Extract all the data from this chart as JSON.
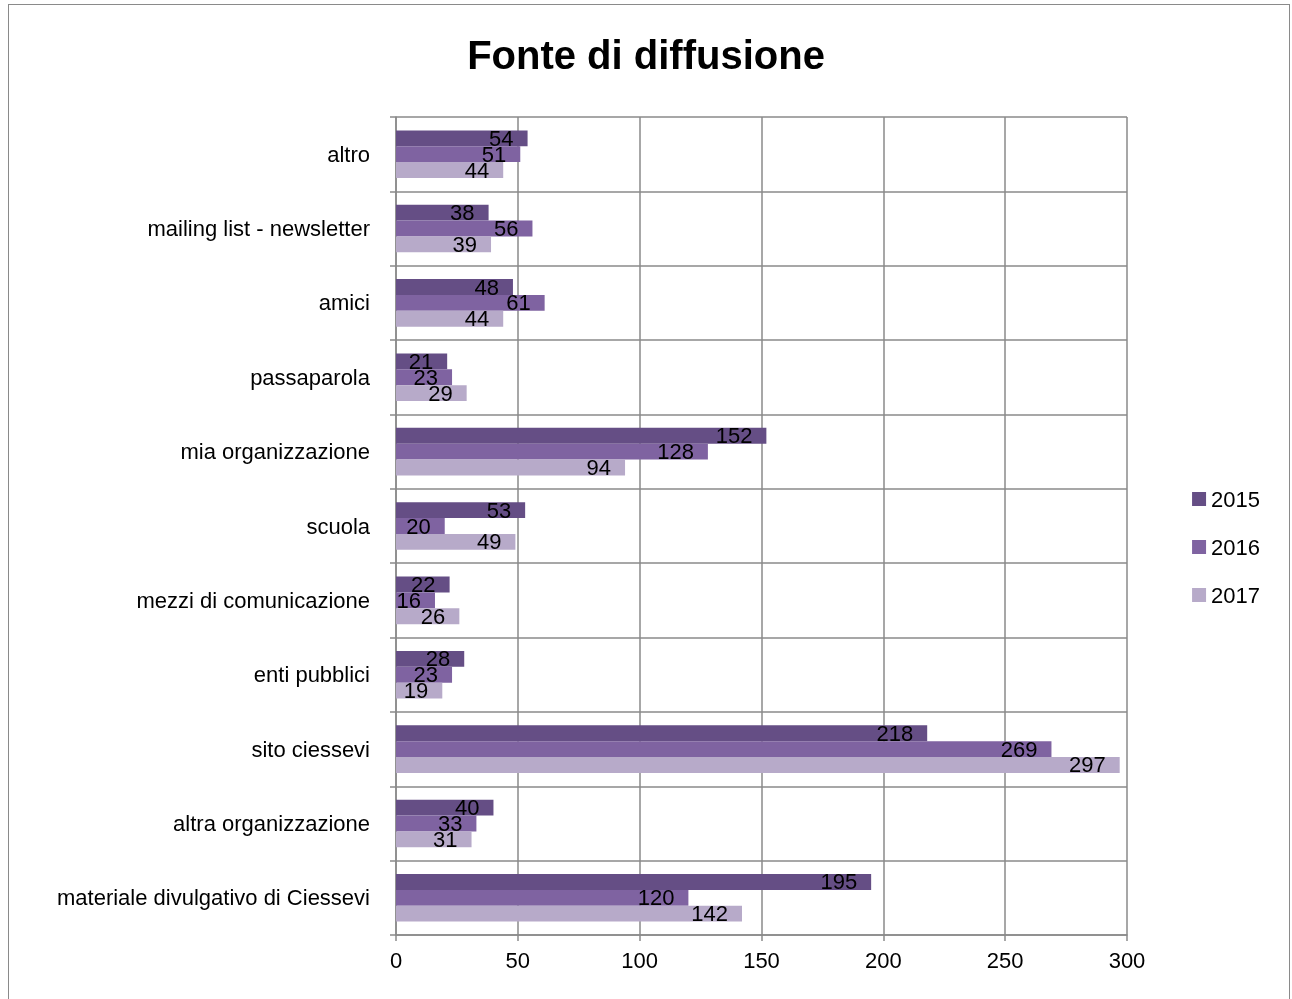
{
  "chart_data": {
    "type": "bar",
    "orientation": "horizontal",
    "title": "Fonte di diffusione",
    "categories": [
      "altro",
      "mailing list - newsletter",
      "amici",
      "passaparola",
      "mia organizzazione",
      "scuola",
      "mezzi di comunicazione",
      "enti pubblici",
      "sito ciessevi",
      "altra organizzazione",
      "materiale divulgativo di Ciessevi"
    ],
    "series": [
      {
        "name": "2015",
        "color": "#654e85",
        "values": [
          54,
          38,
          48,
          21,
          152,
          53,
          22,
          28,
          218,
          40,
          195
        ]
      },
      {
        "name": "2016",
        "color": "#7f63a1",
        "values": [
          51,
          56,
          61,
          23,
          128,
          20,
          16,
          23,
          269,
          33,
          120
        ]
      },
      {
        "name": "2017",
        "color": "#b7aac9",
        "values": [
          44,
          39,
          44,
          29,
          94,
          49,
          26,
          19,
          297,
          31,
          142
        ]
      }
    ],
    "xlim": [
      0,
      300
    ],
    "xticks": [
      0,
      50,
      100,
      150,
      200,
      250,
      300
    ],
    "grid": true,
    "legend": "right",
    "data_labels": true
  }
}
